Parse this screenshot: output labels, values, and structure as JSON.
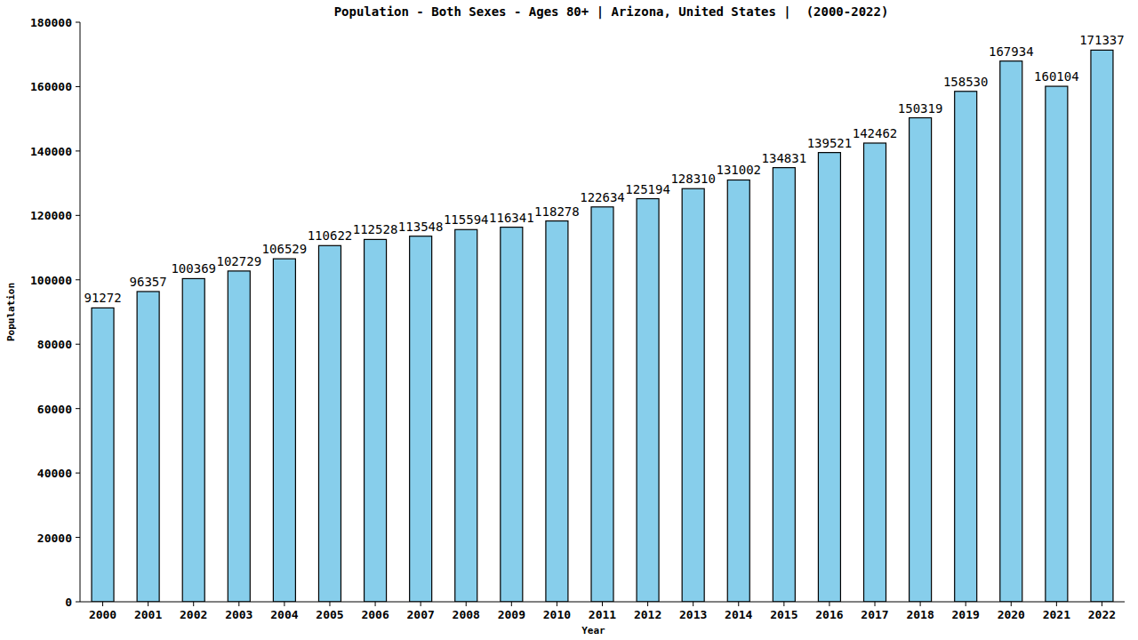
{
  "chart_data": {
    "type": "bar",
    "title": "Population - Both Sexes - Ages 80+ | Arizona, United States |  (2000-2022)",
    "x_label": "Year",
    "y_label": "Population",
    "categories": [
      "2000",
      "2001",
      "2002",
      "2003",
      "2004",
      "2005",
      "2006",
      "2007",
      "2008",
      "2009",
      "2010",
      "2011",
      "2012",
      "2013",
      "2014",
      "2015",
      "2016",
      "2017",
      "2018",
      "2019",
      "2020",
      "2021",
      "2022"
    ],
    "values": [
      91272,
      96357,
      100369,
      102729,
      106529,
      110622,
      112528,
      113548,
      115594,
      116341,
      118278,
      122634,
      125194,
      128310,
      131002,
      134831,
      139521,
      142462,
      150319,
      158530,
      167934,
      160104,
      171337
    ],
    "color": "#87ceeb",
    "ylim": [
      0,
      180000
    ],
    "yticks": [
      0,
      20000,
      40000,
      60000,
      80000,
      100000,
      120000,
      140000,
      160000,
      180000
    ],
    "grid": false,
    "data_labels": true
  }
}
